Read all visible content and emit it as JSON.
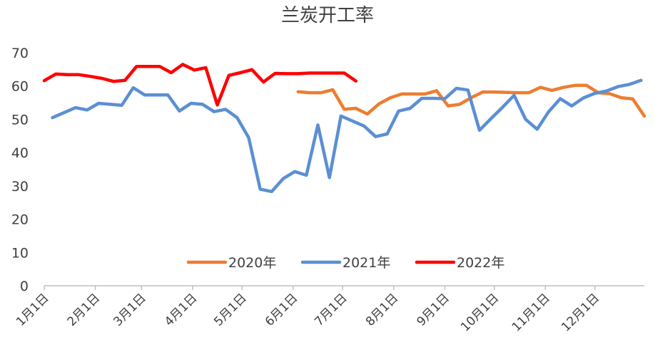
{
  "chart_data": {
    "type": "line",
    "title": "兰炭开工率",
    "xlabel": "",
    "ylabel": "",
    "ylim": [
      0,
      70
    ],
    "yticks": [
      0,
      10,
      20,
      30,
      40,
      50,
      60,
      70
    ],
    "xticks": [
      "1月1日",
      "2月1日",
      "3月1日",
      "4月1日",
      "5月1日",
      "6月1日",
      "7月1日",
      "8月1日",
      "9月1日",
      "10月1日",
      "11月1日",
      "12月1日"
    ],
    "x_unit": "day of year",
    "legend_position": "bottom-center, inside plot",
    "grid": false,
    "series": [
      {
        "name": "2020年",
        "color": "#ED7D31",
        "x": [
          155,
          162,
          169,
          176,
          183,
          190,
          197,
          204,
          211,
          218,
          225,
          232,
          239,
          246,
          253,
          260,
          267,
          274,
          281,
          288,
          295,
          302,
          309,
          316,
          323,
          330,
          337,
          344,
          351,
          358,
          365
        ],
        "y": [
          58.3,
          58.0,
          58.0,
          58.9,
          53.0,
          53.3,
          51.6,
          54.6,
          56.5,
          57.6,
          57.6,
          57.6,
          58.6,
          54.0,
          54.5,
          56.5,
          58.2,
          58.2,
          58.1,
          58.0,
          58.0,
          59.6,
          58.7,
          59.6,
          60.2,
          60.2,
          58.0,
          57.7,
          56.5,
          56.1,
          51.0
        ]
      },
      {
        "name": "2021年",
        "color": "#5B8FD4",
        "x": [
          6,
          13,
          20,
          27,
          34,
          41,
          48,
          55,
          62,
          69,
          76,
          83,
          90,
          97,
          104,
          111,
          118,
          125,
          132,
          139,
          146,
          153,
          160,
          167,
          174,
          181,
          188,
          195,
          202,
          209,
          216,
          223,
          230,
          237,
          244,
          251,
          258,
          265,
          272,
          279,
          286,
          293,
          300,
          307,
          314,
          321,
          328,
          335,
          342,
          349,
          356,
          363
        ],
        "y": [
          50.5,
          52.0,
          53.5,
          52.8,
          54.8,
          54.5,
          54.2,
          59.5,
          57.3,
          57.3,
          57.3,
          52.5,
          54.8,
          54.5,
          52.3,
          53.0,
          50.5,
          44.5,
          29.0,
          28.3,
          32.2,
          34.3,
          33.2,
          48.3,
          32.5,
          51.0,
          49.5,
          48.0,
          44.8,
          45.6,
          52.5,
          53.3,
          56.3,
          56.3,
          56.2,
          59.3,
          58.8,
          46.7,
          50.2,
          53.6,
          57.2,
          50.0,
          47.0,
          52.3,
          56.2,
          54.0,
          56.4,
          57.8,
          58.5,
          59.8,
          60.5,
          61.7
        ]
      },
      {
        "name": "2022年",
        "color": "#FF0000",
        "x": [
          1,
          8,
          15,
          22,
          29,
          36,
          43,
          50,
          57,
          64,
          71,
          78,
          85,
          92,
          99,
          106,
          113,
          120,
          127,
          134,
          141,
          148,
          155,
          162,
          169,
          176,
          183,
          190
        ],
        "y": [
          61.6,
          63.6,
          63.4,
          63.4,
          62.9,
          62.3,
          61.4,
          61.7,
          65.9,
          65.9,
          65.9,
          64.0,
          66.5,
          64.8,
          65.5,
          54.3,
          63.2,
          64.0,
          64.9,
          61.2,
          63.8,
          63.7,
          63.7,
          63.9,
          63.9,
          63.9,
          63.9,
          61.5
        ]
      }
    ]
  }
}
